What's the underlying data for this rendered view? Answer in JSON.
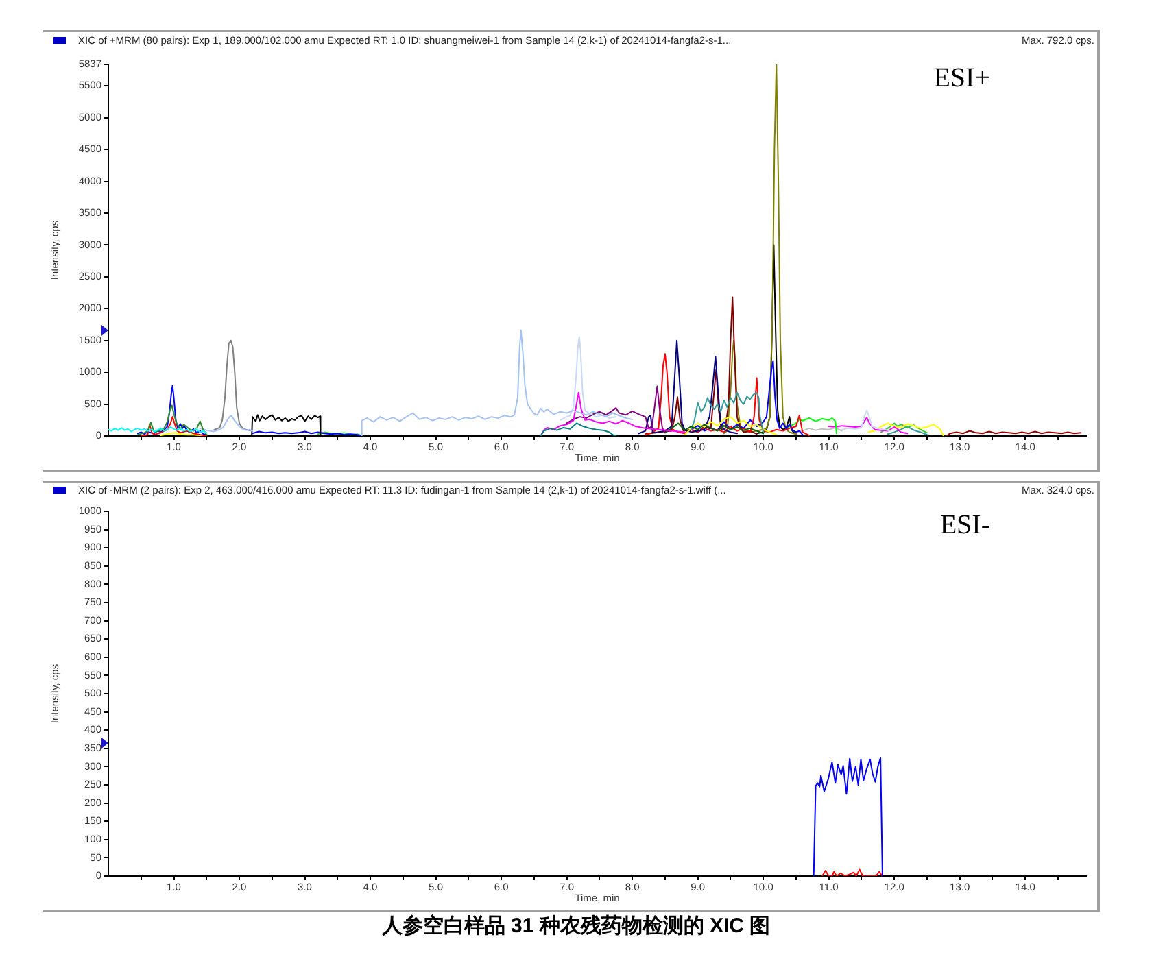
{
  "chart_data": [
    {
      "type": "line",
      "title": "XIC of +MRM (80 pairs): Exp 1, 189.000/102.000 amu Expected RT: 1.0 ID: shuangmeiwei-1 from Sample 14 (2,k-1) of 20241014-fangfa2-s-1...",
      "subtitle": "Max. 792.0 cps.",
      "xlabel": "Time, min",
      "ylabel": "Intensity, cps",
      "annotations": [
        "ESI+"
      ],
      "xlim": [
        0,
        14.93
      ],
      "xticks": [
        {
          "value": 0.5,
          "label": null
        },
        {
          "value": 1,
          "label": "1.0"
        },
        {
          "value": 1.5,
          "label": null
        },
        {
          "value": 2,
          "label": "2.0"
        },
        {
          "value": 2.5,
          "label": null
        },
        {
          "value": 3,
          "label": "3.0"
        },
        {
          "value": 3.5,
          "label": null
        },
        {
          "value": 4,
          "label": "4.0"
        },
        {
          "value": 4.5,
          "label": null
        },
        {
          "value": 5,
          "label": "5.0"
        },
        {
          "value": 5.5,
          "label": null
        },
        {
          "value": 6,
          "label": "6.0"
        },
        {
          "value": 6.5,
          "label": null
        },
        {
          "value": 7,
          "label": "7.0"
        },
        {
          "value": 7.5,
          "label": null
        },
        {
          "value": 8,
          "label": "8.0"
        },
        {
          "value": 8.5,
          "label": null
        },
        {
          "value": 9,
          "label": "9.0"
        },
        {
          "value": 9.5,
          "label": null
        },
        {
          "value": 10,
          "label": "10.0"
        },
        {
          "value": 10.5,
          "label": null
        },
        {
          "value": 11,
          "label": "11.0"
        },
        {
          "value": 11.5,
          "label": null
        },
        {
          "value": 12,
          "label": "12.0"
        },
        {
          "value": 12.5,
          "label": null
        },
        {
          "value": 13,
          "label": "13.0"
        },
        {
          "value": 13.5,
          "label": null
        },
        {
          "value": 14,
          "label": "14.0"
        },
        {
          "value": 14.5,
          "label": null
        }
      ],
      "ylim": [
        0,
        5837
      ],
      "yticks": [
        0,
        500,
        1000,
        1500,
        2000,
        2500,
        3000,
        3500,
        4000,
        4500,
        5000,
        5500,
        5837
      ],
      "series": [
        {
          "color": "#00ffff",
          "x": [
            0,
            0.05,
            0.1,
            0.15,
            0.2,
            0.25,
            0.3,
            0.35,
            0.4,
            0.45,
            0.5,
            0.55,
            0.6,
            0.65,
            0.7,
            0.75,
            0.8,
            0.85,
            0.9,
            0.95,
            1.0,
            1.05,
            1.1,
            1.15,
            1.2,
            1.25,
            1.3,
            1.35,
            1.4,
            1.45,
            1.5
          ],
          "values": [
            100,
            80,
            120,
            90,
            130,
            90,
            110,
            70,
            100,
            120,
            90,
            110,
            80,
            100,
            70,
            90,
            120,
            80,
            100,
            140,
            110,
            90,
            120,
            80,
            100,
            70,
            90,
            110,
            60,
            80,
            50
          ]
        },
        {
          "color": "#2e8b2e",
          "x": [
            0.45,
            0.55,
            0.6,
            0.65,
            0.7,
            0.8,
            0.85,
            0.9,
            0.94,
            0.97,
            1.0,
            1.04,
            1.1,
            1.15,
            1.2,
            1.25,
            1.3,
            1.35,
            1.4,
            1.45,
            1.5
          ],
          "values": [
            20,
            50,
            80,
            210,
            60,
            90,
            120,
            220,
            400,
            480,
            350,
            200,
            110,
            180,
            140,
            100,
            80,
            120,
            230,
            90,
            20
          ]
        },
        {
          "color": "#ff0000",
          "x": [
            0.5,
            0.6,
            0.63,
            0.66,
            0.7,
            0.8,
            0.9,
            0.95,
            0.98,
            1.01,
            1.05,
            1.1,
            1.2,
            1.3,
            1.4,
            1.5
          ],
          "values": [
            0,
            20,
            180,
            60,
            20,
            50,
            100,
            200,
            300,
            200,
            80,
            50,
            80,
            40,
            20,
            0
          ]
        },
        {
          "color": "#ffff00",
          "x": [
            0.8,
            0.9,
            1.0,
            1.1,
            1.2,
            1.3,
            1.4,
            1.5
          ],
          "values": [
            10,
            30,
            50,
            30,
            20,
            20,
            10,
            0
          ]
        },
        {
          "color": "#0000ff",
          "x": [
            0.45,
            0.5,
            0.55,
            0.6,
            0.65,
            0.7,
            0.75,
            0.8,
            0.85,
            0.9,
            0.93,
            0.96,
            0.98,
            1.0,
            1.03,
            1.06,
            1.1,
            1.13,
            1.16,
            1.2,
            1.25,
            1.3,
            1.35,
            1.4,
            1.45,
            1.5
          ],
          "values": [
            40,
            60,
            30,
            70,
            50,
            40,
            80,
            60,
            90,
            150,
            350,
            650,
            792,
            600,
            250,
            120,
            190,
            120,
            160,
            80,
            60,
            110,
            50,
            80,
            30,
            20
          ]
        },
        {
          "color": "#a4c2f4",
          "x": [
            1.4,
            1.5,
            1.6,
            1.7,
            1.75,
            1.8,
            1.85,
            1.88,
            1.92,
            1.96,
            2.0,
            2.05,
            2.1,
            2.15,
            2.2
          ],
          "values": [
            120,
            90,
            70,
            100,
            130,
            220,
            300,
            320,
            250,
            200,
            150,
            110,
            90,
            100,
            80
          ]
        },
        {
          "color": "#808080",
          "x": [
            1.6,
            1.65,
            1.7,
            1.74,
            1.78,
            1.81,
            1.84,
            1.87,
            1.9,
            1.93,
            1.96,
            2.0,
            2.05,
            2.1,
            2.2
          ],
          "values": [
            90,
            110,
            130,
            250,
            600,
            1100,
            1450,
            1500,
            1400,
            1000,
            450,
            200,
            120,
            100,
            80
          ]
        },
        {
          "color": "#000000",
          "x": [
            2.19,
            2.2,
            2.25,
            2.28,
            2.31,
            2.35,
            2.4,
            2.45,
            2.5,
            2.55,
            2.6,
            2.65,
            2.7,
            2.75,
            2.8,
            2.85,
            2.9,
            2.95,
            3.0,
            3.05,
            3.1,
            3.15,
            3.2,
            3.23,
            3.24
          ],
          "values": [
            0,
            300,
            230,
            330,
            240,
            310,
            260,
            300,
            330,
            250,
            290,
            240,
            280,
            230,
            270,
            250,
            300,
            320,
            230,
            310,
            260,
            320,
            290,
            310,
            0
          ]
        },
        {
          "color": "#0000ff",
          "x": [
            2.2,
            2.3,
            2.4,
            2.5,
            2.6,
            2.7,
            2.8,
            2.9,
            3.0,
            3.1,
            3.2,
            3.3,
            3.4,
            3.5,
            3.6,
            3.7,
            3.8,
            3.85
          ],
          "values": [
            40,
            70,
            50,
            60,
            40,
            50,
            40,
            50,
            70,
            40,
            60,
            40,
            30,
            40,
            20,
            30,
            20,
            10
          ]
        },
        {
          "color": "#33cc33",
          "x": [
            3.2,
            3.3,
            3.4,
            3.5,
            3.6,
            3.7,
            3.8,
            3.85
          ],
          "values": [
            30,
            60,
            40,
            30,
            50,
            20,
            30,
            10
          ]
        },
        {
          "color": "#a4c2f4",
          "x": [
            3.86,
            3.87,
            3.95,
            4.05,
            4.15,
            4.25,
            4.35,
            4.45,
            4.55,
            4.65,
            4.75,
            4.85,
            4.95,
            5.05,
            5.15,
            5.25,
            5.35,
            5.45,
            5.55,
            5.65,
            5.75,
            5.85,
            5.95,
            6.05,
            6.15,
            6.2,
            6.25,
            6.28,
            6.3,
            6.33,
            6.36,
            6.4,
            6.45,
            6.5,
            6.55,
            6.6,
            6.65,
            6.7,
            6.8,
            6.9,
            7.0,
            7.1,
            7.3,
            7.4,
            7.5,
            7.6,
            7.7,
            7.8,
            7.9,
            8.0
          ],
          "values": [
            0,
            240,
            280,
            220,
            300,
            250,
            290,
            230,
            300,
            360,
            260,
            290,
            240,
            280,
            260,
            300,
            250,
            290,
            270,
            310,
            260,
            300,
            280,
            320,
            300,
            330,
            600,
            1400,
            1660,
            1300,
            800,
            500,
            420,
            350,
            330,
            430,
            380,
            420,
            340,
            380,
            360,
            400,
            330,
            380,
            340,
            300,
            360,
            320,
            280,
            260
          ]
        },
        {
          "color": "#c9daf8",
          "x": [
            6.9,
            7.0,
            7.05,
            7.1,
            7.14,
            7.17,
            7.19,
            7.21,
            7.24,
            7.28,
            7.35,
            7.45,
            7.55,
            7.65,
            7.75
          ],
          "values": [
            250,
            300,
            320,
            450,
            900,
            1400,
            1560,
            1350,
            700,
            400,
            350,
            300,
            330,
            280,
            300
          ]
        },
        {
          "color": "#008080",
          "x": [
            6.6,
            6.65,
            6.75,
            6.85,
            6.95,
            7.05,
            7.15,
            7.25,
            7.35,
            7.45,
            7.55,
            7.65,
            7.7,
            7.75
          ],
          "values": [
            0,
            80,
            120,
            90,
            130,
            110,
            200,
            150,
            120,
            100,
            90,
            60,
            20,
            0
          ]
        },
        {
          "color": "#ff00ff",
          "x": [
            6.6,
            6.65,
            6.7,
            6.8,
            6.9,
            7.0,
            7.1,
            7.14,
            7.18,
            7.22,
            7.28,
            7.35,
            7.45,
            7.55,
            7.65,
            7.75,
            7.85,
            7.95,
            8.05,
            8.2,
            8.4,
            8.6,
            8.8
          ],
          "values": [
            0,
            90,
            130,
            100,
            160,
            180,
            240,
            450,
            680,
            420,
            250,
            260,
            220,
            200,
            230,
            190,
            240,
            200,
            150,
            120,
            100,
            80,
            60
          ]
        },
        {
          "color": "#800080",
          "x": [
            7.0,
            7.1,
            7.2,
            7.3,
            7.4,
            7.5,
            7.6,
            7.7,
            7.75,
            7.8,
            7.9,
            8.0,
            8.1,
            8.2,
            8.25,
            8.3,
            8.34,
            8.38,
            8.42,
            8.46,
            8.5
          ],
          "values": [
            200,
            260,
            300,
            280,
            340,
            380,
            330,
            400,
            440,
            360,
            330,
            390,
            340,
            300,
            120,
            150,
            450,
            780,
            400,
            120,
            60
          ]
        },
        {
          "color": "#006400",
          "x": [
            8.5,
            8.6,
            8.7,
            8.8,
            8.9,
            9.0,
            9.1,
            9.2,
            9.3,
            9.4,
            9.5,
            9.6,
            9.7,
            9.8,
            9.9,
            10.0
          ],
          "values": [
            50,
            120,
            200,
            90,
            150,
            100,
            180,
            120,
            80,
            160,
            100,
            140,
            90,
            120,
            80,
            40
          ]
        },
        {
          "color": "#339999",
          "x": [
            8.9,
            8.95,
            9.0,
            9.05,
            9.1,
            9.15,
            9.2,
            9.25,
            9.3,
            9.35,
            9.4,
            9.45,
            9.5,
            9.55,
            9.6,
            9.65,
            9.7,
            9.75,
            9.8,
            9.85,
            9.9,
            9.93,
            9.95,
            10.0
          ],
          "values": [
            100,
            250,
            520,
            380,
            450,
            600,
            480,
            420,
            500,
            380,
            560,
            450,
            600,
            520,
            680,
            560,
            500,
            620,
            580,
            650,
            680,
            600,
            300,
            60
          ]
        },
        {
          "color": "#ffff00",
          "x": [
            8.8,
            8.9,
            9.0,
            9.1,
            9.2,
            9.3,
            9.4,
            9.5,
            9.6,
            9.7,
            9.8,
            9.9,
            10.0,
            10.1,
            10.2
          ],
          "values": [
            20,
            120,
            200,
            140,
            220,
            160,
            260,
            300,
            200,
            240,
            150,
            180,
            100,
            60,
            20
          ]
        },
        {
          "color": "#000080",
          "x": [
            8.1,
            8.2,
            8.25,
            8.28,
            8.31,
            8.35,
            8.5,
            8.6,
            8.64,
            8.68,
            8.72,
            8.76,
            8.8,
            8.9,
            9.0,
            9.1,
            9.18,
            9.23,
            9.27,
            9.31,
            9.35,
            9.4,
            9.5,
            9.6
          ],
          "values": [
            40,
            80,
            300,
            320,
            60,
            50,
            80,
            150,
            800,
            1500,
            900,
            200,
            100,
            60,
            80,
            100,
            300,
            800,
            1250,
            700,
            200,
            100,
            60,
            40
          ]
        },
        {
          "color": "#ff0000",
          "x": [
            8.2,
            8.3,
            8.4,
            8.44,
            8.47,
            8.5,
            8.53,
            8.57,
            8.62,
            8.7,
            8.8,
            8.9,
            9.0,
            9.1,
            9.2,
            9.3,
            9.4,
            9.5,
            9.6,
            9.7,
            9.8,
            9.86,
            9.9,
            9.94,
            10.0,
            10.1,
            10.2,
            10.3,
            10.4,
            10.5,
            10.55,
            10.6,
            10.7
          ],
          "values": [
            20,
            50,
            120,
            600,
            1100,
            1290,
            1000,
            300,
            100,
            60,
            40,
            100,
            60,
            120,
            80,
            100,
            60,
            150,
            80,
            120,
            60,
            300,
            910,
            250,
            80,
            60,
            100,
            80,
            120,
            150,
            320,
            60,
            10
          ]
        },
        {
          "color": "#800000",
          "x": [
            8.2,
            8.4,
            8.6,
            8.65,
            8.69,
            8.73,
            8.78,
            8.9,
            9.0,
            9.1,
            9.2,
            9.24,
            9.28,
            9.32,
            9.36,
            9.42,
            9.47,
            9.5,
            9.53,
            9.56,
            9.6,
            9.65,
            9.7,
            9.8,
            9.9
          ],
          "values": [
            30,
            60,
            80,
            300,
            610,
            250,
            80,
            100,
            60,
            150,
            120,
            600,
            1040,
            400,
            100,
            120,
            500,
            1500,
            2180,
            1300,
            300,
            120,
            60,
            80,
            30
          ]
        },
        {
          "color": "#0000ff",
          "x": [
            8.8,
            8.9,
            9.0,
            9.1,
            9.2,
            9.3,
            9.4,
            9.5,
            9.6,
            9.7,
            9.8,
            9.9,
            10.0,
            10.05,
            10.09,
            10.12,
            10.15,
            10.18,
            10.21,
            10.25,
            10.3,
            10.35,
            10.4,
            10.45,
            10.5,
            10.55,
            10.6
          ],
          "values": [
            40,
            100,
            160,
            80,
            120,
            90,
            220,
            100,
            180,
            120,
            250,
            150,
            220,
            300,
            700,
            1000,
            1180,
            600,
            250,
            120,
            200,
            120,
            180,
            90,
            60,
            80,
            20
          ]
        },
        {
          "color": "#808000",
          "x": [
            9.4,
            9.45,
            9.5,
            9.53,
            9.55,
            9.57,
            9.6,
            9.65,
            9.7,
            9.8,
            9.9,
            10.0,
            10.05,
            10.1,
            10.14,
            10.17,
            10.2,
            10.23,
            10.26,
            10.3,
            10.35,
            10.4,
            10.5
          ],
          "values": [
            40,
            80,
            700,
            1300,
            1500,
            1200,
            500,
            150,
            80,
            60,
            80,
            100,
            120,
            300,
            2000,
            4500,
            5837,
            4000,
            1500,
            300,
            100,
            60,
            30
          ]
        },
        {
          "color": "#000000",
          "x": [
            9.9,
            10.0,
            10.05,
            10.1,
            10.13,
            10.16,
            10.19,
            10.22,
            10.25,
            10.3,
            10.35,
            10.4,
            10.43,
            10.46,
            10.5
          ],
          "values": [
            40,
            60,
            100,
            300,
            1500,
            3000,
            1600,
            400,
            150,
            100,
            120,
            300,
            100,
            60,
            30
          ]
        },
        {
          "color": "#00ff00",
          "x": [
            10.3,
            10.4,
            10.5,
            10.55,
            10.6,
            10.7,
            10.8,
            10.9,
            11.0,
            11.05,
            11.1,
            11.12
          ],
          "values": [
            100,
            150,
            200,
            260,
            240,
            280,
            230,
            270,
            250,
            280,
            230,
            40
          ]
        },
        {
          "color": "#c0c0c0",
          "x": [
            10.5,
            10.6,
            10.7,
            10.8,
            10.9,
            11.0,
            11.1,
            11.2
          ],
          "values": [
            60,
            80,
            120,
            90,
            110,
            100,
            130,
            80
          ]
        },
        {
          "color": "#c9daf8",
          "x": [
            11.2,
            11.3,
            11.4,
            11.5,
            11.54,
            11.58,
            11.62,
            11.66,
            11.75,
            11.85,
            11.95
          ],
          "values": [
            100,
            120,
            110,
            130,
            300,
            400,
            300,
            150,
            120,
            100,
            80
          ]
        },
        {
          "color": "#ff00ff",
          "x": [
            11.0,
            11.1,
            11.2,
            11.3,
            11.4,
            11.5,
            11.54,
            11.58,
            11.62,
            11.7,
            11.8,
            11.9,
            12.0,
            12.05,
            12.1,
            12.2
          ],
          "values": [
            150,
            140,
            160,
            150,
            140,
            150,
            220,
            290,
            200,
            100,
            90,
            80,
            140,
            110,
            60,
            40
          ]
        },
        {
          "color": "#ffff00",
          "x": [
            11.6,
            11.7,
            11.8,
            11.9,
            12.0,
            12.1,
            12.2,
            12.3,
            12.4,
            12.5,
            12.6,
            12.7,
            12.75
          ],
          "values": [
            60,
            80,
            150,
            200,
            150,
            130,
            190,
            160,
            120,
            140,
            180,
            110,
            0
          ]
        },
        {
          "color": "#33cc33",
          "x": [
            11.8,
            11.9,
            12.0,
            12.05,
            12.1,
            12.2,
            12.3,
            12.4,
            12.5
          ],
          "values": [
            60,
            120,
            200,
            150,
            180,
            140,
            170,
            100,
            50
          ]
        },
        {
          "color": "#339999",
          "x": [
            11.9,
            12.0,
            12.1,
            12.2,
            12.3,
            12.4,
            12.5
          ],
          "values": [
            30,
            60,
            100,
            150,
            90,
            60,
            20
          ]
        },
        {
          "color": "#990000",
          "x": [
            12.8,
            12.85,
            12.95,
            13.05,
            13.15,
            13.25,
            13.35,
            13.45,
            13.55,
            13.65,
            13.75,
            13.85,
            13.95,
            14.05,
            14.15,
            14.25,
            14.35,
            14.45,
            14.55,
            14.65,
            14.75,
            14.85
          ],
          "values": [
            0,
            40,
            60,
            40,
            80,
            50,
            40,
            70,
            40,
            60,
            50,
            40,
            60,
            40,
            70,
            40,
            60,
            50,
            40,
            60,
            40,
            50
          ]
        }
      ]
    },
    {
      "type": "line",
      "title": "XIC of -MRM (2 pairs): Exp 2, 463.000/416.000 amu Expected RT: 11.3 ID: fudingan-1 from Sample 14 (2,k-1) of 20241014-fangfa2-s-1.wiff (...",
      "subtitle": "Max. 324.0 cps.",
      "xlabel": "Time, min",
      "ylabel": "Intensity, cps",
      "annotations": [
        "ESI-",
        "人参空白样品 31 种农残药物检测的 XIC 图"
      ],
      "xlim": [
        0,
        14.93
      ],
      "xticks": [
        {
          "value": 0.5,
          "label": null
        },
        {
          "value": 1,
          "label": "1.0"
        },
        {
          "value": 1.5,
          "label": null
        },
        {
          "value": 2,
          "label": "2.0"
        },
        {
          "value": 2.5,
          "label": null
        },
        {
          "value": 3,
          "label": "3.0"
        },
        {
          "value": 3.5,
          "label": null
        },
        {
          "value": 4,
          "label": "4.0"
        },
        {
          "value": 4.5,
          "label": null
        },
        {
          "value": 5,
          "label": "5.0"
        },
        {
          "value": 5.5,
          "label": null
        },
        {
          "value": 6,
          "label": "6.0"
        },
        {
          "value": 6.5,
          "label": null
        },
        {
          "value": 7,
          "label": "7.0"
        },
        {
          "value": 7.5,
          "label": null
        },
        {
          "value": 8,
          "label": "8.0"
        },
        {
          "value": 8.5,
          "label": null
        },
        {
          "value": 9,
          "label": "9.0"
        },
        {
          "value": 9.5,
          "label": null
        },
        {
          "value": 10,
          "label": "10.0"
        },
        {
          "value": 10.5,
          "label": null
        },
        {
          "value": 11,
          "label": "11.0"
        },
        {
          "value": 11.5,
          "label": null
        },
        {
          "value": 12,
          "label": "12.0"
        },
        {
          "value": 12.5,
          "label": null
        },
        {
          "value": 13,
          "label": "13.0"
        },
        {
          "value": 13.5,
          "label": null
        },
        {
          "value": 14,
          "label": "14.0"
        },
        {
          "value": 14.5,
          "label": null
        }
      ],
      "ylim": [
        0,
        1000
      ],
      "yticks": [
        0,
        50,
        100,
        150,
        200,
        250,
        300,
        350,
        400,
        450,
        500,
        550,
        600,
        650,
        700,
        750,
        800,
        850,
        900,
        950,
        1000
      ],
      "series": [
        {
          "color": "#0000ff",
          "x": [
            10.77,
            10.8,
            10.83,
            10.86,
            10.88,
            10.93,
            10.99,
            11.05,
            11.1,
            11.14,
            11.19,
            11.22,
            11.27,
            11.32,
            11.36,
            11.41,
            11.45,
            11.49,
            11.53,
            11.58,
            11.63,
            11.67,
            11.71,
            11.75,
            11.79,
            11.82
          ],
          "values": [
            0,
            247,
            255,
            245,
            275,
            232,
            265,
            312,
            255,
            305,
            278,
            302,
            225,
            322,
            260,
            300,
            250,
            320,
            262,
            295,
            320,
            280,
            258,
            300,
            324,
            0
          ]
        },
        {
          "color": "#ff0000",
          "x": [
            10.9,
            10.95,
            11.0,
            11.05,
            11.08,
            11.12,
            11.18,
            11.25,
            11.32,
            11.38,
            11.42,
            11.47,
            11.52,
            11.72,
            11.77,
            11.82
          ],
          "values": [
            0,
            15,
            0,
            0,
            12,
            0,
            8,
            0,
            5,
            10,
            0,
            18,
            0,
            0,
            12,
            0
          ]
        }
      ]
    }
  ]
}
